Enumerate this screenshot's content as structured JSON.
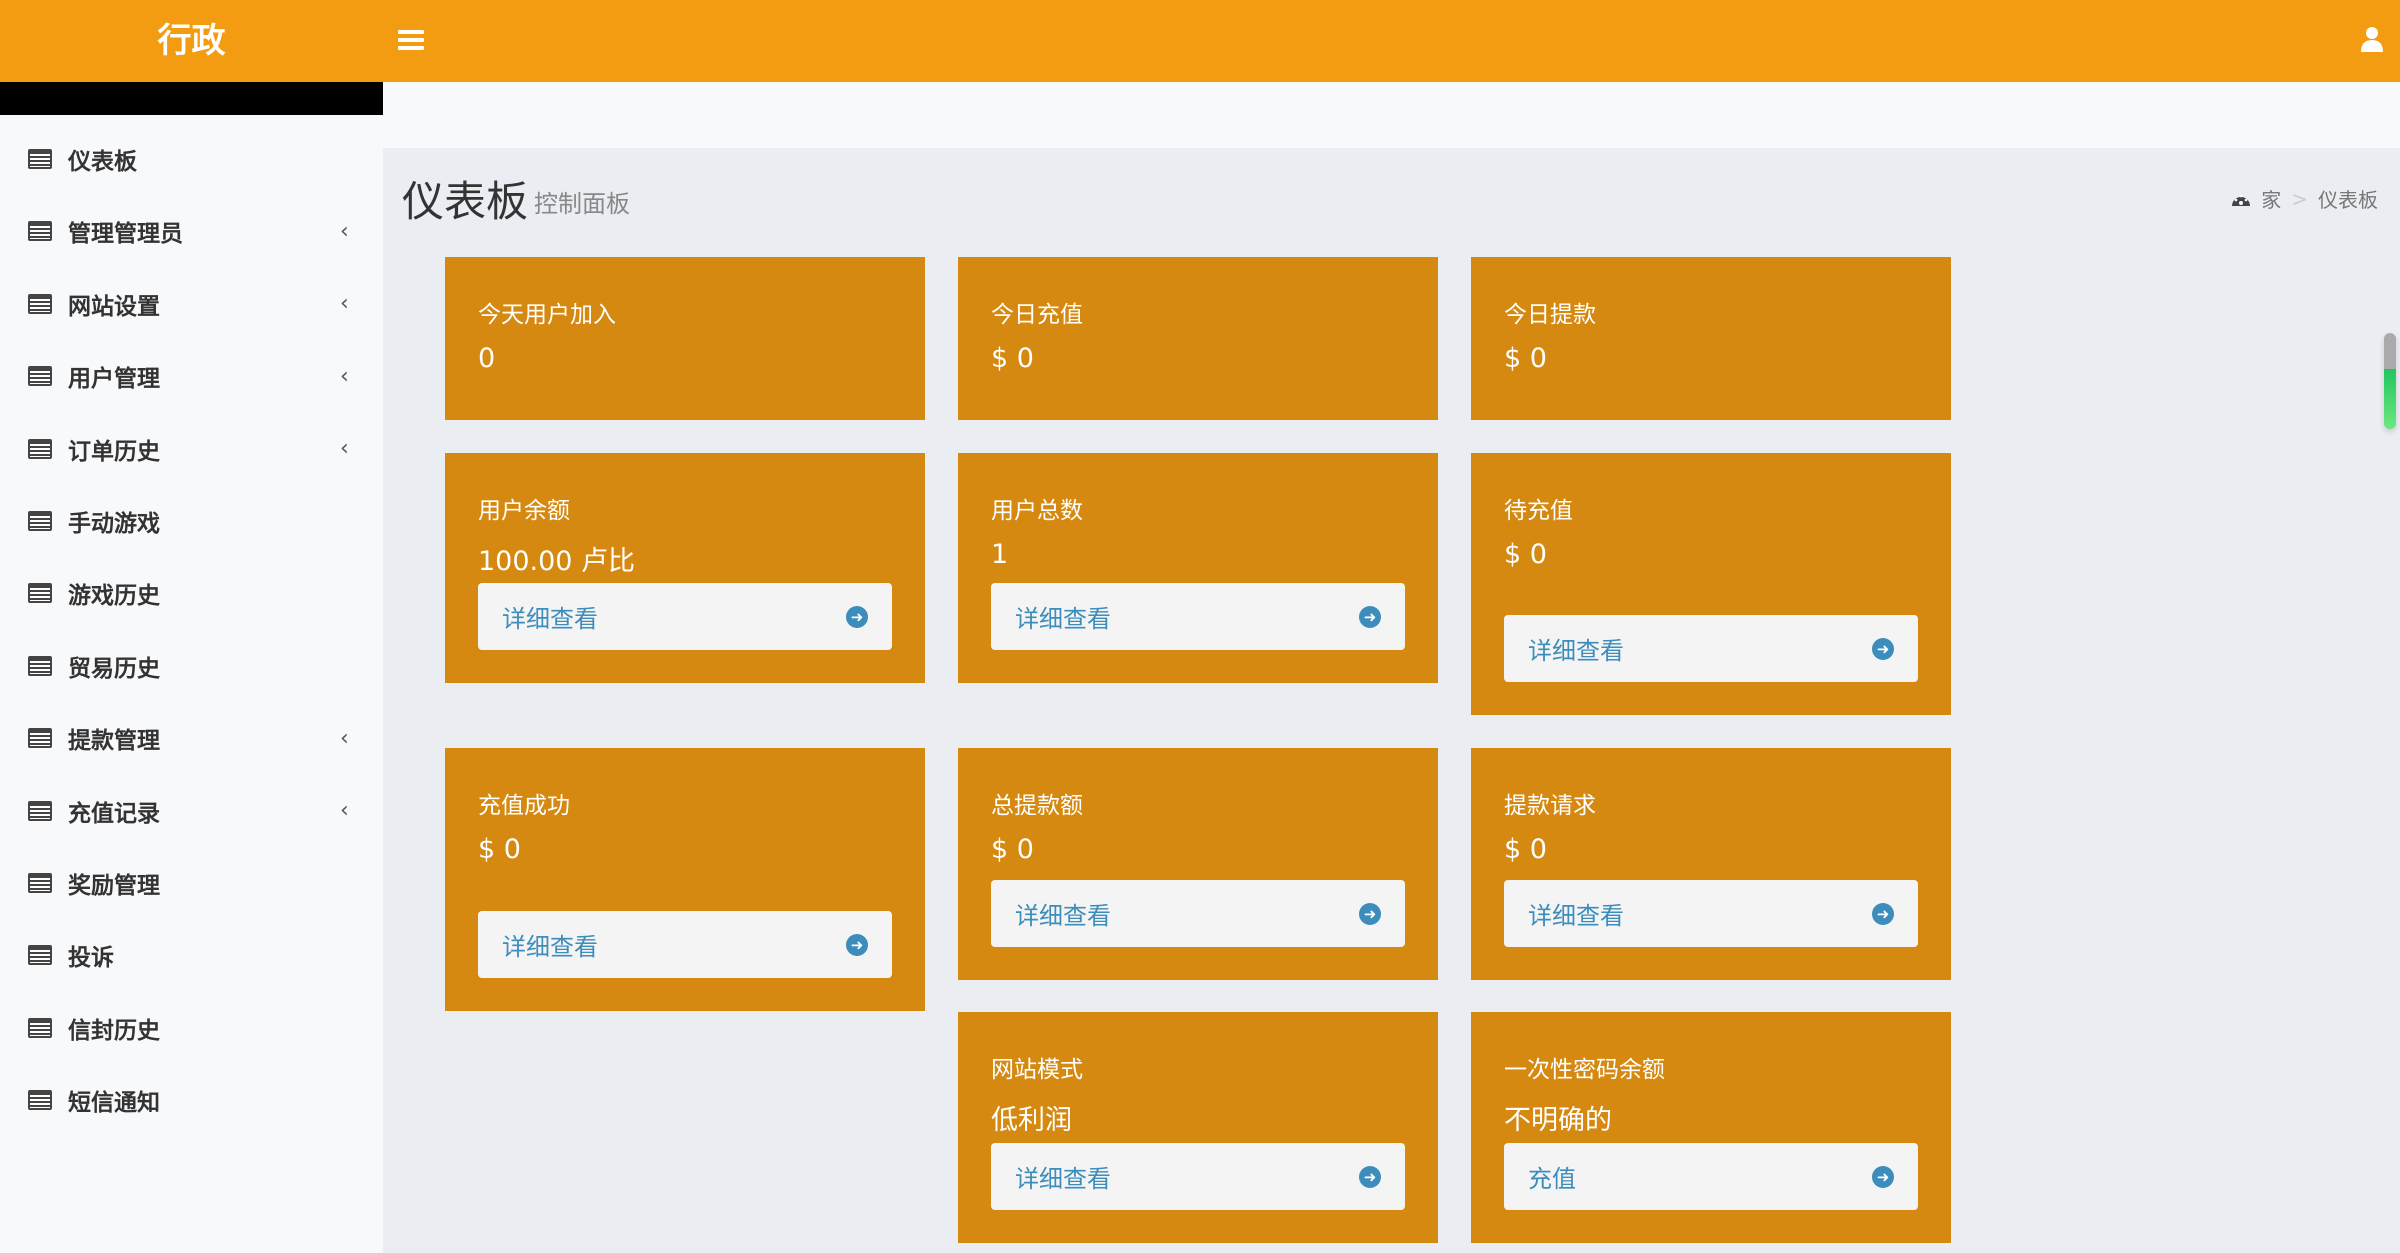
{
  "header": {
    "logo": "行政",
    "menu_icon": "hamburger-icon",
    "user_icon": "user-icon"
  },
  "sidebar": {
    "items": [
      {
        "label": "仪表板",
        "chevron": false
      },
      {
        "label": "管理管理员",
        "chevron": true
      },
      {
        "label": "网站设置",
        "chevron": true
      },
      {
        "label": "用户管理",
        "chevron": true
      },
      {
        "label": "订单历史",
        "chevron": true
      },
      {
        "label": "手动游戏",
        "chevron": false
      },
      {
        "label": "游戏历史",
        "chevron": false
      },
      {
        "label": "贸易历史",
        "chevron": false
      },
      {
        "label": "提款管理",
        "chevron": true
      },
      {
        "label": "充值记录",
        "chevron": true
      },
      {
        "label": "奖励管理",
        "chevron": false
      },
      {
        "label": "投诉",
        "chevron": false
      },
      {
        "label": "信封历史",
        "chevron": false
      },
      {
        "label": "短信通知",
        "chevron": false
      }
    ]
  },
  "page": {
    "title": "仪表板",
    "subtitle": "控制面板"
  },
  "breadcrumb": {
    "home": "家",
    "separator": ">",
    "current": "仪表板"
  },
  "colors": {
    "header": "#f39c12",
    "card": "#d68910",
    "link": "#3c8dbc"
  },
  "cards": [
    {
      "title": "今天用户加入",
      "value": "0"
    },
    {
      "title": "今日充值",
      "value": "$ 0"
    },
    {
      "title": "今日提款",
      "value": "$ 0"
    },
    {
      "title": "用户余额",
      "value": "100.00 卢比",
      "button": "详细查看"
    },
    {
      "title": "用户总数",
      "value": "1",
      "button": "详细查看"
    },
    {
      "title": "待充值",
      "value": "$ 0",
      "button": "详细查看"
    },
    {
      "title": "充值成功",
      "value": "$ 0",
      "button": "详细查看"
    },
    {
      "title": "总提款额",
      "value": "$ 0",
      "button": "详细查看"
    },
    {
      "title": "提款请求",
      "value": "$ 0",
      "button": "详细查看"
    },
    {
      "title": "网站模式",
      "value": "低利润",
      "button": "详细查看"
    },
    {
      "title": "一次性密码余额",
      "value": "不明确的",
      "button": "充值"
    }
  ]
}
